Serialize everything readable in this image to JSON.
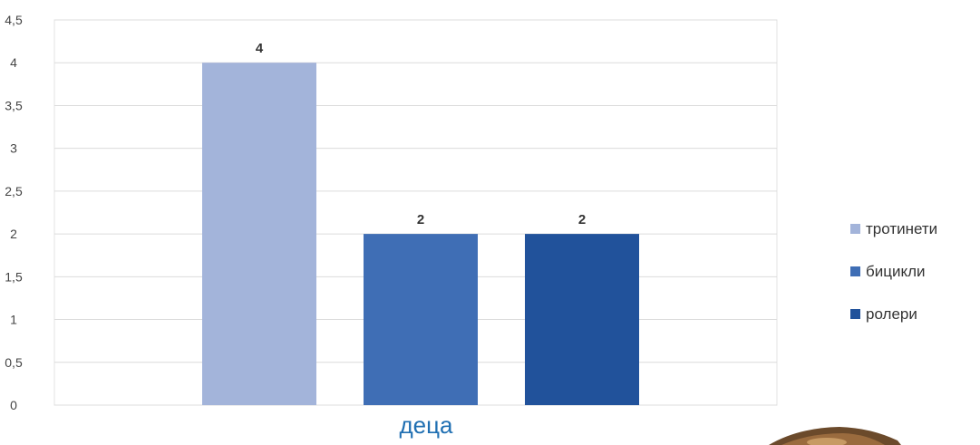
{
  "chart_data": {
    "type": "bar",
    "categories": [
      "деца"
    ],
    "series": [
      {
        "name": "тротинети",
        "values": [
          4
        ],
        "color": "#a3b4da"
      },
      {
        "name": "бицикли",
        "values": [
          2
        ],
        "color": "#3f6eb5"
      },
      {
        "name": "ролери",
        "values": [
          2
        ],
        "color": "#21529b"
      }
    ],
    "title": "",
    "xlabel": "деца",
    "ylabel": "",
    "ylim": [
      0,
      4.5
    ],
    "yticks": [
      "0",
      "0,5",
      "1",
      "1,5",
      "2",
      "2,5",
      "3",
      "3,5",
      "4",
      "4,5"
    ],
    "data_labels": [
      "4",
      "2",
      "2"
    ],
    "grid": true,
    "legend_position": "right"
  }
}
